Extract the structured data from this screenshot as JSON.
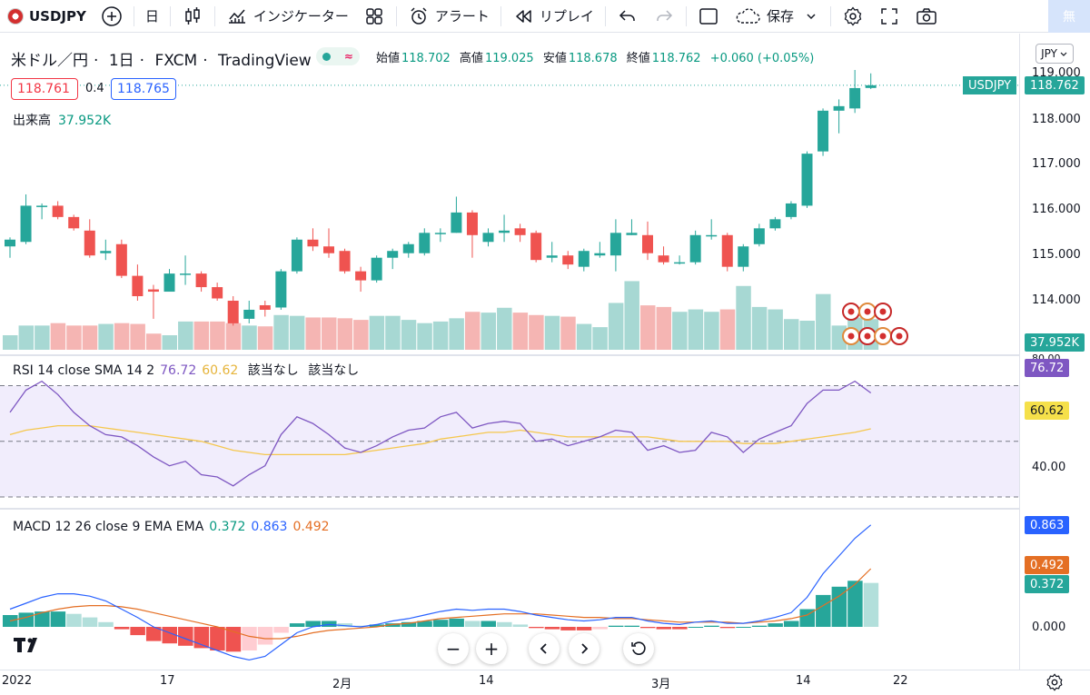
{
  "toolbar": {
    "symbol": "USDJPY",
    "interval": "日",
    "indicators_label": "インジケーター",
    "alert_label": "アラート",
    "replay_label": "リプレイ",
    "save_label": "保存",
    "badge_label": "無"
  },
  "legend": {
    "name": "米ドル／円",
    "interval": "1日",
    "exchange": "FXCM",
    "source": "TradingView",
    "open_label": "始値",
    "open": "118.702",
    "high_label": "高値",
    "high": "119.025",
    "low_label": "安値",
    "low": "118.678",
    "close_label": "終値",
    "close": "118.762",
    "change": "+0.060 (+0.05%)",
    "sell_price": "118.761",
    "spread": "0.4",
    "buy_price": "118.765"
  },
  "volume": {
    "label": "出来高",
    "value": "37.952K"
  },
  "rsi": {
    "label": "RSI 14 close SMA 14 2",
    "rsi_value": "76.72",
    "sma_value": "60.62",
    "na1": "該当なし",
    "na2": "該当なし"
  },
  "macd": {
    "label": "MACD 12 26 close 9 EMA EMA",
    "hist": "0.372",
    "macd": "0.863",
    "signal": "0.492"
  },
  "price_axis": {
    "currency": "JPY",
    "ticks": [
      "119.000",
      "118.000",
      "117.000",
      "116.000",
      "115.000",
      "114.000"
    ],
    "symbol_tag": "USDJPY",
    "last_price": "118.762",
    "volume_badge": "37.952K",
    "rsi_ticks": [
      "80.00",
      "40.00"
    ],
    "rsi_badge": "76.72",
    "sma_badge": "60.62",
    "macd_badges": [
      "0.863",
      "0.492",
      "0.372"
    ],
    "macd_zero": "0.000"
  },
  "time_axis": {
    "ticks": [
      "2022",
      "17",
      "2月",
      "14",
      "3月",
      "14",
      "22"
    ]
  },
  "colors": {
    "up": "#26a69a",
    "down": "#ef5350",
    "rsi": "#7e57c2",
    "sma": "#f5c74d",
    "macd": "#2962ff",
    "signal": "#e46f24"
  },
  "chart_data": {
    "type": "candlestick",
    "symbol": "USDJPY",
    "candles": [
      {
        "o": 115.2,
        "h": 115.4,
        "l": 114.95,
        "c": 115.35
      },
      {
        "o": 115.3,
        "h": 116.35,
        "l": 115.25,
        "c": 116.1
      },
      {
        "o": 116.1,
        "h": 116.15,
        "l": 115.8,
        "c": 116.1
      },
      {
        "o": 116.1,
        "h": 116.2,
        "l": 115.8,
        "c": 115.85
      },
      {
        "o": 115.85,
        "h": 115.9,
        "l": 115.55,
        "c": 115.6
      },
      {
        "o": 115.55,
        "h": 115.8,
        "l": 114.95,
        "c": 115.0
      },
      {
        "o": 115.05,
        "h": 115.35,
        "l": 114.9,
        "c": 115.1
      },
      {
        "o": 115.25,
        "h": 115.35,
        "l": 114.5,
        "c": 114.55
      },
      {
        "o": 114.55,
        "h": 114.8,
        "l": 114.0,
        "c": 114.1
      },
      {
        "o": 114.25,
        "h": 114.35,
        "l": 113.6,
        "c": 114.2
      },
      {
        "o": 114.2,
        "h": 114.7,
        "l": 114.2,
        "c": 114.6
      },
      {
        "o": 114.6,
        "h": 115.0,
        "l": 114.35,
        "c": 114.6
      },
      {
        "o": 114.6,
        "h": 114.65,
        "l": 114.2,
        "c": 114.3
      },
      {
        "o": 114.3,
        "h": 114.4,
        "l": 114.0,
        "c": 114.05
      },
      {
        "o": 114.0,
        "h": 114.1,
        "l": 113.45,
        "c": 113.5
      },
      {
        "o": 113.6,
        "h": 114.0,
        "l": 113.5,
        "c": 113.8
      },
      {
        "o": 113.9,
        "h": 114.0,
        "l": 113.65,
        "c": 113.8
      },
      {
        "o": 113.85,
        "h": 114.7,
        "l": 113.8,
        "c": 114.65
      },
      {
        "o": 114.65,
        "h": 115.4,
        "l": 114.6,
        "c": 115.35
      },
      {
        "o": 115.35,
        "h": 115.6,
        "l": 115.1,
        "c": 115.2
      },
      {
        "o": 115.2,
        "h": 115.6,
        "l": 114.95,
        "c": 115.05
      },
      {
        "o": 115.1,
        "h": 115.15,
        "l": 114.6,
        "c": 114.65
      },
      {
        "o": 114.65,
        "h": 114.75,
        "l": 114.2,
        "c": 114.45
      },
      {
        "o": 114.45,
        "h": 115.0,
        "l": 114.4,
        "c": 114.95
      },
      {
        "o": 114.95,
        "h": 115.15,
        "l": 114.7,
        "c": 115.1
      },
      {
        "o": 115.05,
        "h": 115.3,
        "l": 114.95,
        "c": 115.25
      },
      {
        "o": 115.05,
        "h": 115.6,
        "l": 115.0,
        "c": 115.5
      },
      {
        "o": 115.5,
        "h": 115.6,
        "l": 115.3,
        "c": 115.5
      },
      {
        "o": 115.5,
        "h": 116.3,
        "l": 115.5,
        "c": 115.95
      },
      {
        "o": 115.95,
        "h": 116.0,
        "l": 114.95,
        "c": 115.45
      },
      {
        "o": 115.3,
        "h": 115.6,
        "l": 115.2,
        "c": 115.5
      },
      {
        "o": 115.5,
        "h": 115.9,
        "l": 115.3,
        "c": 115.55
      },
      {
        "o": 115.6,
        "h": 115.7,
        "l": 115.3,
        "c": 115.45
      },
      {
        "o": 115.5,
        "h": 115.55,
        "l": 114.85,
        "c": 114.9
      },
      {
        "o": 114.95,
        "h": 115.3,
        "l": 114.85,
        "c": 115.0
      },
      {
        "o": 115.0,
        "h": 115.1,
        "l": 114.7,
        "c": 114.8
      },
      {
        "o": 114.75,
        "h": 115.15,
        "l": 114.65,
        "c": 115.1
      },
      {
        "o": 115.0,
        "h": 115.3,
        "l": 114.95,
        "c": 115.05
      },
      {
        "o": 115.0,
        "h": 115.8,
        "l": 114.65,
        "c": 115.5
      },
      {
        "o": 115.45,
        "h": 115.8,
        "l": 115.45,
        "c": 115.5
      },
      {
        "o": 115.45,
        "h": 115.75,
        "l": 114.9,
        "c": 115.05
      },
      {
        "o": 115.0,
        "h": 115.2,
        "l": 114.8,
        "c": 114.85
      },
      {
        "o": 114.85,
        "h": 115.0,
        "l": 114.8,
        "c": 114.85
      },
      {
        "o": 114.85,
        "h": 115.55,
        "l": 114.8,
        "c": 115.45
      },
      {
        "o": 115.45,
        "h": 115.8,
        "l": 115.35,
        "c": 115.45
      },
      {
        "o": 115.45,
        "h": 115.5,
        "l": 114.65,
        "c": 114.75
      },
      {
        "o": 114.75,
        "h": 115.25,
        "l": 114.65,
        "c": 115.2
      },
      {
        "o": 115.25,
        "h": 115.7,
        "l": 115.2,
        "c": 115.6
      },
      {
        "o": 115.6,
        "h": 115.85,
        "l": 115.55,
        "c": 115.8
      },
      {
        "o": 115.85,
        "h": 116.2,
        "l": 115.8,
        "c": 116.15
      },
      {
        "o": 116.1,
        "h": 117.3,
        "l": 116.05,
        "c": 117.25
      },
      {
        "o": 117.3,
        "h": 118.25,
        "l": 117.2,
        "c": 118.2
      },
      {
        "o": 118.2,
        "h": 118.45,
        "l": 117.7,
        "c": 118.3
      },
      {
        "o": 118.25,
        "h": 119.1,
        "l": 118.15,
        "c": 118.7
      },
      {
        "o": 118.702,
        "h": 119.025,
        "l": 118.678,
        "c": 118.762
      }
    ],
    "volume": [
      18,
      30,
      30,
      33,
      30,
      30,
      32,
      33,
      32,
      20,
      18,
      35,
      35,
      35,
      33,
      30,
      29,
      43,
      42,
      40,
      40,
      39,
      37,
      42,
      42,
      37,
      33,
      35,
      39,
      47,
      46,
      52,
      46,
      43,
      42,
      41,
      32,
      28,
      58,
      85,
      55,
      53,
      47,
      50,
      47,
      50,
      79,
      53,
      50,
      38,
      36,
      69,
      30,
      40,
      37.952
    ],
    "rsi": [
      68,
      78,
      82,
      76,
      68,
      62,
      58,
      57,
      53,
      48,
      44,
      46,
      40,
      39,
      35,
      40,
      44,
      58,
      66,
      63,
      58,
      52,
      50,
      53,
      57,
      60,
      61,
      66,
      68,
      61,
      63,
      64,
      63,
      55,
      56,
      53,
      55,
      57,
      60,
      59,
      51,
      53,
      50,
      51,
      59,
      57,
      50,
      56,
      59,
      62,
      72,
      78,
      78,
      82,
      76.72
    ],
    "rsi_sma": [
      58,
      60,
      61,
      62,
      62,
      62,
      61,
      60,
      59,
      58,
      57,
      56,
      55,
      53,
      51,
      50,
      49,
      49,
      49,
      49,
      49,
      49,
      50,
      51,
      52,
      53,
      54,
      56,
      57,
      58,
      59,
      59,
      60,
      59,
      58,
      57,
      57,
      57,
      57,
      57,
      57,
      56,
      55,
      55,
      55,
      55,
      54,
      54,
      54,
      55,
      56,
      57,
      58,
      59,
      60.62
    ],
    "macd_line": [
      0.15,
      0.2,
      0.25,
      0.28,
      0.28,
      0.26,
      0.22,
      0.15,
      0.08,
      0.0,
      -0.05,
      -0.1,
      -0.15,
      -0.2,
      -0.25,
      -0.28,
      -0.25,
      -0.15,
      -0.05,
      0.0,
      0.02,
      0.01,
      0.0,
      0.02,
      0.05,
      0.07,
      0.1,
      0.13,
      0.15,
      0.14,
      0.15,
      0.15,
      0.13,
      0.1,
      0.08,
      0.06,
      0.05,
      0.06,
      0.08,
      0.08,
      0.05,
      0.03,
      0.02,
      0.04,
      0.05,
      0.03,
      0.03,
      0.05,
      0.08,
      0.12,
      0.25,
      0.45,
      0.6,
      0.75,
      0.863
    ],
    "signal_line": [
      0.05,
      0.08,
      0.12,
      0.15,
      0.17,
      0.18,
      0.18,
      0.17,
      0.15,
      0.12,
      0.09,
      0.06,
      0.03,
      0.0,
      -0.04,
      -0.08,
      -0.1,
      -0.1,
      -0.08,
      -0.05,
      -0.03,
      -0.02,
      -0.01,
      0.0,
      0.02,
      0.03,
      0.05,
      0.07,
      0.08,
      0.09,
      0.1,
      0.11,
      0.11,
      0.11,
      0.1,
      0.09,
      0.08,
      0.08,
      0.07,
      0.07,
      0.06,
      0.05,
      0.04,
      0.04,
      0.04,
      0.04,
      0.03,
      0.04,
      0.05,
      0.07,
      0.1,
      0.18,
      0.26,
      0.36,
      0.492
    ],
    "histogram": [
      0.1,
      0.12,
      0.13,
      0.13,
      0.11,
      0.08,
      0.04,
      -0.02,
      -0.07,
      -0.12,
      -0.14,
      -0.16,
      -0.18,
      -0.2,
      -0.21,
      -0.2,
      -0.15,
      -0.05,
      0.03,
      0.05,
      0.05,
      0.03,
      0.01,
      0.02,
      0.03,
      0.04,
      0.05,
      0.06,
      0.07,
      0.05,
      0.05,
      0.04,
      0.02,
      -0.01,
      -0.02,
      -0.03,
      -0.03,
      -0.02,
      0.01,
      0.01,
      -0.01,
      -0.02,
      -0.02,
      0.0,
      0.01,
      -0.01,
      0.0,
      0.01,
      0.03,
      0.05,
      0.15,
      0.27,
      0.34,
      0.39,
      0.372
    ],
    "price_range": [
      113.3,
      119.15
    ],
    "rsi_range": [
      30,
      90
    ],
    "macd_range": [
      -0.3,
      1.0
    ]
  }
}
